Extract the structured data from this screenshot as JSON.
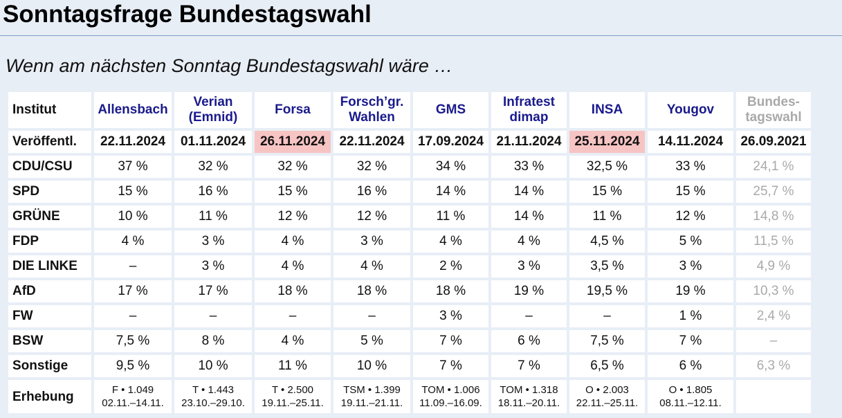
{
  "title": "Sonntagsfrage Bundestagswahl",
  "subtitle": "Wenn am nächsten Sonntag Bundestagswahl wäre …",
  "table": {
    "header_label": "Institut",
    "institutes": [
      {
        "line1": "Allensbach",
        "line2": ""
      },
      {
        "line1": "Verian",
        "line2": "(Emnid)"
      },
      {
        "line1": "Forsa",
        "line2": ""
      },
      {
        "line1": "Forsch’gr.",
        "line2": "Wahlen"
      },
      {
        "line1": "GMS",
        "line2": ""
      },
      {
        "line1": "Infratest",
        "line2": "dimap"
      },
      {
        "line1": "INSA",
        "line2": ""
      },
      {
        "line1": "Yougov",
        "line2": ""
      },
      {
        "line1": "Bundes-",
        "line2": "tagswahl"
      }
    ],
    "date_label": "Veröffentl.",
    "dates": [
      "22.11.2024",
      "01.11.2024",
      "26.11.2024",
      "22.11.2024",
      "17.09.2024",
      "21.11.2024",
      "25.11.2024",
      "14.11.2024",
      "26.09.2021"
    ],
    "highlight_color": "#f7c4c4",
    "rows": [
      {
        "party": "CDU/CSU",
        "values": [
          "37 %",
          "32 %",
          "32 %",
          "32 %",
          "34 %",
          "33 %",
          "32,5 %",
          "33 %",
          "24,1 %"
        ]
      },
      {
        "party": "SPD",
        "values": [
          "15 %",
          "16 %",
          "15 %",
          "16 %",
          "14 %",
          "14 %",
          "15 %",
          "15 %",
          "25,7 %"
        ]
      },
      {
        "party": "GRÜNE",
        "values": [
          "10 %",
          "11 %",
          "12 %",
          "12 %",
          "11 %",
          "14 %",
          "11 %",
          "12 %",
          "14,8 %"
        ]
      },
      {
        "party": "FDP",
        "values": [
          "4 %",
          "3 %",
          "4 %",
          "3 %",
          "4 %",
          "4 %",
          "4,5 %",
          "5 %",
          "11,5 %"
        ]
      },
      {
        "party": "DIE LINKE",
        "values": [
          "–",
          "3 %",
          "4 %",
          "4 %",
          "2 %",
          "3 %",
          "3,5 %",
          "3 %",
          "4,9 %"
        ]
      },
      {
        "party": "AfD",
        "values": [
          "17 %",
          "17 %",
          "18 %",
          "18 %",
          "18 %",
          "19 %",
          "19,5 %",
          "19 %",
          "10,3 %"
        ]
      },
      {
        "party": "FW",
        "values": [
          "–",
          "–",
          "–",
          "–",
          "3 %",
          "–",
          "–",
          "1 %",
          "2,4 %"
        ]
      },
      {
        "party": "BSW",
        "values": [
          "7,5 %",
          "8 %",
          "4 %",
          "5 %",
          "7 %",
          "6 %",
          "7,5 %",
          "7 %",
          "–"
        ]
      },
      {
        "party": "Sonstige",
        "values": [
          "9,5 %",
          "10 %",
          "11 %",
          "10 %",
          "7 %",
          "7 %",
          "6,5 %",
          "6 %",
          "6,3 %"
        ]
      }
    ],
    "survey_label": "Erhebung",
    "surveys": [
      {
        "line1": "F • 1.049",
        "line2": "02.11.–14.11."
      },
      {
        "line1": "T • 1.443",
        "line2": "23.10.–29.10."
      },
      {
        "line1": "T • 2.500",
        "line2": "19.11.–25.11."
      },
      {
        "line1": "TSM • 1.399",
        "line2": "19.11.–21.11."
      },
      {
        "line1": "TOM • 1.006",
        "line2": "11.09.–16.09."
      },
      {
        "line1": "TOM • 1.318",
        "line2": "18.11.–20.11."
      },
      {
        "line1": "O • 2.003",
        "line2": "22.11.–25.11."
      },
      {
        "line1": "O • 1.805",
        "line2": "08.11.–12.11."
      },
      {
        "line1": "",
        "line2": ""
      }
    ]
  }
}
